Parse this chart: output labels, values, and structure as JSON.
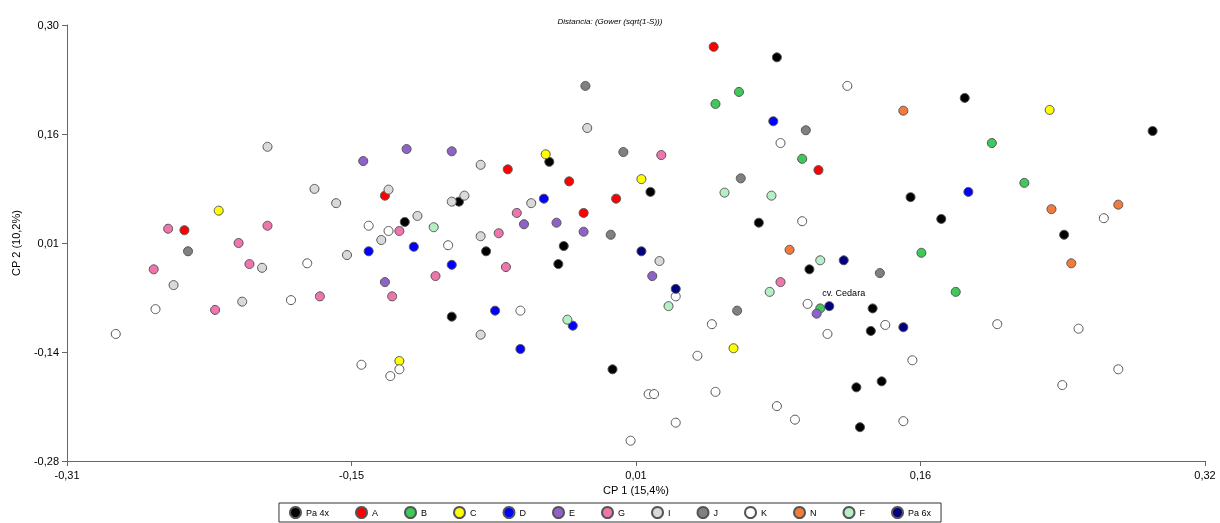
{
  "chart_data": {
    "type": "scatter",
    "title": "Distancia: (Gower (sqrt(1-S)))",
    "xlabel": "CP 1 (15,4%)",
    "ylabel": "CP 2 (10,2%)",
    "xlim": [
      -0.31,
      0.32
    ],
    "xticks": [
      {
        "value": -0.31,
        "label": "-0,31"
      },
      {
        "value": -0.1525,
        "label": "-0,15"
      },
      {
        "value": 0.005,
        "label": "0,01"
      },
      {
        "value": 0.1625,
        "label": "0,16"
      },
      {
        "value": 0.32,
        "label": "0,32"
      }
    ],
    "ylim": [
      -0.28,
      0.3
    ],
    "yticks": [
      {
        "value": -0.28,
        "label": "-0,28"
      },
      {
        "value": -0.135,
        "label": "-0,14"
      },
      {
        "value": 0.01,
        "label": "0,01"
      },
      {
        "value": 0.155,
        "label": "0,16"
      },
      {
        "value": 0.3,
        "label": "0,30"
      }
    ],
    "grid": false,
    "legend": "bottom",
    "marker": "circle",
    "annotations": [
      {
        "text": "cv. Cedara",
        "x": 0.112,
        "y": -0.074
      }
    ],
    "series": [
      {
        "name": "Pa 4x",
        "color": "#000000",
        "x": [
          0.083,
          0.187,
          0.291,
          -0.043,
          -0.093,
          0.013,
          0.157,
          0.174,
          -0.123,
          0.073,
          0.242,
          -0.035,
          -0.078,
          -0.038,
          0.101,
          -0.097,
          -0.008,
          0.136,
          0.135,
          0.141,
          0.127,
          0.129
        ],
        "values": [
          0.257,
          0.203,
          0.159,
          0.118,
          0.065,
          0.078,
          0.071,
          0.042,
          0.038,
          0.037,
          0.021,
          0.006,
          -0.001,
          -0.018,
          -0.025,
          -0.088,
          -0.158,
          -0.077,
          -0.107,
          -0.174,
          -0.182,
          -0.235
        ]
      },
      {
        "name": "A",
        "color": "#ff0000",
        "x": [
          0.048,
          -0.134,
          -0.245,
          -0.066,
          0.106,
          -0.032,
          -0.006,
          -0.024
        ],
        "values": [
          0.271,
          0.073,
          0.027,
          0.108,
          0.107,
          0.092,
          0.069,
          0.05
        ]
      },
      {
        "name": "B",
        "color": "#3fc95a",
        "x": [
          0.062,
          0.049,
          0.097,
          0.163,
          0.182,
          0.107,
          0.202,
          0.22
        ],
        "values": [
          0.211,
          0.195,
          0.122,
          -0.003,
          -0.055,
          -0.077,
          0.143,
          0.09
        ]
      },
      {
        "name": "C",
        "color": "#ffff00",
        "x": [
          -0.226,
          -0.045,
          0.008,
          -0.126,
          0.059,
          0.234
        ],
        "values": [
          0.053,
          0.128,
          0.095,
          -0.147,
          -0.13,
          0.187
        ]
      },
      {
        "name": "D",
        "color": "#0000ff",
        "x": [
          0.081,
          -0.046,
          -0.118,
          -0.143,
          -0.097,
          -0.073,
          -0.03,
          -0.059,
          0.189
        ],
        "values": [
          0.172,
          0.069,
          0.005,
          -0.001,
          -0.019,
          -0.08,
          -0.1,
          -0.131,
          0.078
        ]
      },
      {
        "name": "E",
        "color": "#8f62c9",
        "x": [
          -0.146,
          -0.122,
          -0.097,
          -0.057,
          -0.039,
          -0.024,
          -0.134,
          0.014,
          0.105
        ],
        "values": [
          0.119,
          0.135,
          0.132,
          0.035,
          0.037,
          0.025,
          -0.042,
          -0.034,
          -0.084
        ]
      },
      {
        "name": "G",
        "color": "#f075ad",
        "x": [
          -0.254,
          -0.199,
          -0.126,
          -0.215,
          -0.262,
          -0.209,
          -0.106,
          -0.17,
          -0.13,
          -0.228,
          0.019,
          -0.061,
          -0.071,
          -0.067,
          0.085
        ],
        "values": [
          0.029,
          0.033,
          0.026,
          0.01,
          -0.025,
          -0.018,
          -0.034,
          -0.061,
          -0.061,
          -0.079,
          0.127,
          0.05,
          0.023,
          -0.022,
          -0.042
        ]
      },
      {
        "name": "I",
        "color": "#d9d9d9",
        "x": [
          -0.199,
          -0.173,
          -0.132,
          -0.161,
          -0.116,
          -0.136,
          -0.202,
          -0.155,
          -0.251,
          -0.213,
          -0.022,
          -0.081,
          -0.097,
          -0.09,
          -0.053,
          -0.081,
          0.018,
          -0.081
        ],
        "values": [
          0.138,
          0.082,
          0.081,
          0.063,
          0.046,
          0.014,
          -0.023,
          -0.006,
          -0.046,
          -0.068,
          0.163,
          0.114,
          0.065,
          0.073,
          0.063,
          0.019,
          -0.014,
          -0.112
        ]
      },
      {
        "name": "J",
        "color": "#808080",
        "x": [
          -0.243,
          -0.023,
          0.099,
          -0.002,
          0.063,
          -0.009,
          0.061,
          0.14
        ],
        "values": [
          -0.001,
          0.219,
          0.16,
          0.131,
          0.096,
          0.021,
          -0.08,
          -0.03
        ]
      },
      {
        "name": "K",
        "color": "#ffffff",
        "x": [
          -0.143,
          -0.132,
          -0.177,
          -0.261,
          -0.186,
          -0.283,
          -0.147,
          -0.126,
          -0.131,
          0.085,
          0.097,
          -0.099,
          -0.059,
          0.027,
          0.047,
          0.1,
          0.039,
          0.012,
          0.015,
          0.049,
          0.083,
          0.093,
          0.027,
          0.002,
          0.143,
          0.111,
          0.205,
          0.25,
          0.158,
          0.272,
          0.241,
          0.153,
          0.122,
          0.264
        ],
        "values": [
          0.033,
          0.026,
          -0.017,
          -0.078,
          -0.066,
          -0.111,
          -0.152,
          -0.158,
          -0.167,
          0.143,
          0.039,
          0.007,
          -0.08,
          -0.061,
          -0.098,
          -0.071,
          -0.14,
          -0.191,
          -0.191,
          -0.188,
          -0.207,
          -0.225,
          -0.229,
          -0.253,
          -0.099,
          -0.111,
          -0.098,
          -0.104,
          -0.146,
          -0.158,
          -0.179,
          -0.227,
          0.219,
          0.043
        ]
      },
      {
        "name": "N",
        "color": "#f47a3c",
        "x": [
          0.153,
          0.09,
          0.246,
          0.235,
          0.272
        ],
        "values": [
          0.186,
          0.001,
          -0.017,
          0.055,
          0.061
        ]
      },
      {
        "name": "F",
        "color": "#b5efc6",
        "x": [
          -0.107,
          0.054,
          0.08,
          0.107,
          0.079,
          0.023,
          -0.033
        ],
        "values": [
          0.031,
          0.077,
          0.073,
          -0.013,
          -0.055,
          -0.074,
          -0.092
        ]
      },
      {
        "name": "Pa 6x",
        "color": "#000080",
        "x": [
          0.008,
          0.027,
          0.12,
          0.112,
          0.153
        ],
        "values": [
          -0.001,
          -0.051,
          -0.013,
          -0.074,
          -0.102
        ]
      }
    ]
  }
}
